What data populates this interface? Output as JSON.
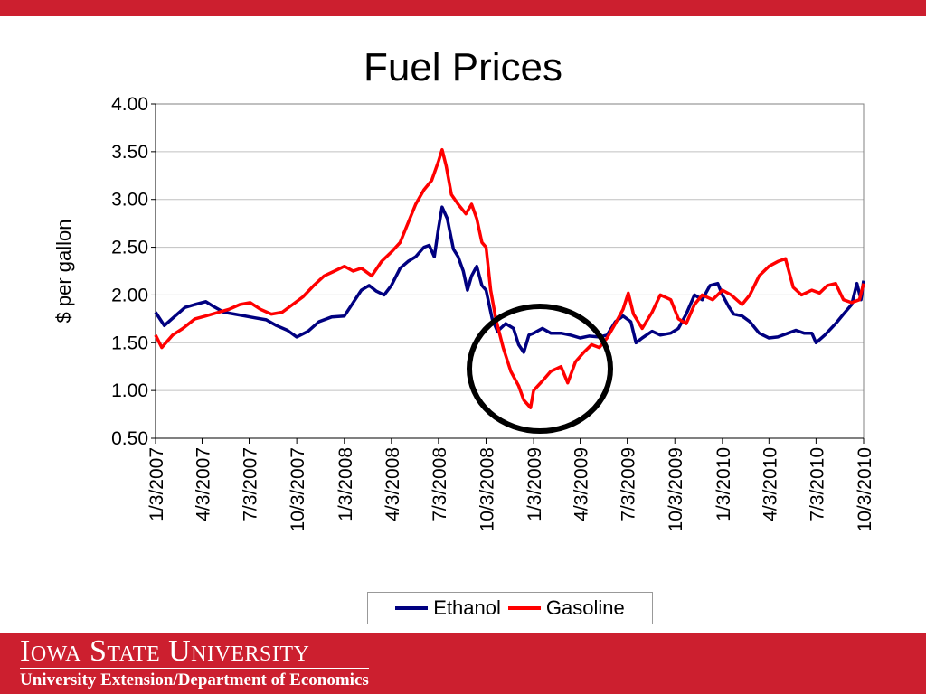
{
  "slide": {
    "footer_university": "Iowa State University",
    "footer_department": "University Extension/Department of Economics"
  },
  "colors": {
    "brand_red": "#cc1f2f",
    "ethanol": "#000080",
    "gasoline": "#ff0000"
  },
  "chart_data": {
    "type": "line",
    "title": "Fuel Prices",
    "ylabel": "$ per gallon",
    "xlabel": "",
    "ylim": [
      0.5,
      4.0
    ],
    "yticks": [
      "0.50",
      "1.00",
      "1.50",
      "2.00",
      "2.50",
      "3.00",
      "3.50",
      "4.00"
    ],
    "xlim": [
      "2007-01-03",
      "2010-10-03"
    ],
    "xticks": [
      "1/3/2007",
      "4/3/2007",
      "7/3/2007",
      "10/3/2007",
      "1/3/2008",
      "4/3/2008",
      "7/3/2008",
      "10/3/2008",
      "1/3/2009",
      "4/3/2009",
      "7/3/2009",
      "10/3/2009",
      "1/3/2010",
      "4/3/2010",
      "7/3/2010",
      "10/3/2010"
    ],
    "grid": true,
    "legend_position": "bottom",
    "annotation": "circle around late 2008 – early 2009 region",
    "series": [
      {
        "name": "Ethanol",
        "color": "#000080",
        "points": [
          [
            "2007-01-03",
            1.82
          ],
          [
            "2007-01-20",
            1.68
          ],
          [
            "2007-02-10",
            1.78
          ],
          [
            "2007-03-01",
            1.87
          ],
          [
            "2007-03-20",
            1.9
          ],
          [
            "2007-04-10",
            1.93
          ],
          [
            "2007-04-25",
            1.88
          ],
          [
            "2007-05-15",
            1.82
          ],
          [
            "2007-06-05",
            1.8
          ],
          [
            "2007-06-25",
            1.78
          ],
          [
            "2007-07-15",
            1.76
          ],
          [
            "2007-08-05",
            1.74
          ],
          [
            "2007-08-25",
            1.68
          ],
          [
            "2007-09-15",
            1.63
          ],
          [
            "2007-10-03",
            1.56
          ],
          [
            "2007-10-25",
            1.62
          ],
          [
            "2007-11-15",
            1.72
          ],
          [
            "2007-12-10",
            1.77
          ],
          [
            "2008-01-03",
            1.78
          ],
          [
            "2008-01-20",
            1.92
          ],
          [
            "2008-02-05",
            2.05
          ],
          [
            "2008-02-20",
            2.1
          ],
          [
            "2008-03-05",
            2.04
          ],
          [
            "2008-03-20",
            2.0
          ],
          [
            "2008-04-03",
            2.1
          ],
          [
            "2008-04-20",
            2.28
          ],
          [
            "2008-05-05",
            2.35
          ],
          [
            "2008-05-20",
            2.4
          ],
          [
            "2008-06-05",
            2.5
          ],
          [
            "2008-06-15",
            2.52
          ],
          [
            "2008-06-25",
            2.4
          ],
          [
            "2008-07-03",
            2.7
          ],
          [
            "2008-07-10",
            2.92
          ],
          [
            "2008-07-20",
            2.8
          ],
          [
            "2008-08-01",
            2.48
          ],
          [
            "2008-08-10",
            2.4
          ],
          [
            "2008-08-20",
            2.25
          ],
          [
            "2008-08-28",
            2.05
          ],
          [
            "2008-09-05",
            2.2
          ],
          [
            "2008-09-15",
            2.3
          ],
          [
            "2008-09-25",
            2.1
          ],
          [
            "2008-10-03",
            2.05
          ],
          [
            "2008-10-15",
            1.75
          ],
          [
            "2008-10-25",
            1.62
          ],
          [
            "2008-11-10",
            1.7
          ],
          [
            "2008-11-25",
            1.65
          ],
          [
            "2008-12-05",
            1.48
          ],
          [
            "2008-12-15",
            1.4
          ],
          [
            "2008-12-25",
            1.58
          ],
          [
            "2009-01-03",
            1.6
          ],
          [
            "2009-01-20",
            1.65
          ],
          [
            "2009-02-05",
            1.6
          ],
          [
            "2009-02-25",
            1.6
          ],
          [
            "2009-03-15",
            1.58
          ],
          [
            "2009-04-03",
            1.55
          ],
          [
            "2009-04-20",
            1.57
          ],
          [
            "2009-05-10",
            1.56
          ],
          [
            "2009-05-25",
            1.58
          ],
          [
            "2009-06-10",
            1.72
          ],
          [
            "2009-06-25",
            1.78
          ],
          [
            "2009-07-10",
            1.72
          ],
          [
            "2009-07-20",
            1.5
          ],
          [
            "2009-08-01",
            1.55
          ],
          [
            "2009-08-20",
            1.62
          ],
          [
            "2009-09-05",
            1.58
          ],
          [
            "2009-09-25",
            1.6
          ],
          [
            "2009-10-10",
            1.65
          ],
          [
            "2009-10-25",
            1.8
          ],
          [
            "2009-11-10",
            2.0
          ],
          [
            "2009-11-25",
            1.95
          ],
          [
            "2009-12-10",
            2.1
          ],
          [
            "2009-12-25",
            2.12
          ],
          [
            "2010-01-03",
            2.0
          ],
          [
            "2010-01-15",
            1.88
          ],
          [
            "2010-01-25",
            1.8
          ],
          [
            "2010-02-10",
            1.78
          ],
          [
            "2010-02-25",
            1.72
          ],
          [
            "2010-03-15",
            1.6
          ],
          [
            "2010-04-03",
            1.55
          ],
          [
            "2010-04-20",
            1.56
          ],
          [
            "2010-05-10",
            1.6
          ],
          [
            "2010-05-25",
            1.63
          ],
          [
            "2010-06-10",
            1.6
          ],
          [
            "2010-06-25",
            1.6
          ],
          [
            "2010-07-03",
            1.5
          ],
          [
            "2010-07-20",
            1.58
          ],
          [
            "2010-08-10",
            1.7
          ],
          [
            "2010-08-25",
            1.8
          ],
          [
            "2010-09-10",
            1.9
          ],
          [
            "2010-09-20",
            2.12
          ],
          [
            "2010-09-28",
            1.95
          ],
          [
            "2010-10-03",
            2.15
          ]
        ]
      },
      {
        "name": "Gasoline",
        "color": "#ff0000",
        "points": [
          [
            "2007-01-03",
            1.58
          ],
          [
            "2007-01-15",
            1.45
          ],
          [
            "2007-02-05",
            1.58
          ],
          [
            "2007-02-25",
            1.65
          ],
          [
            "2007-03-20",
            1.75
          ],
          [
            "2007-04-10",
            1.78
          ],
          [
            "2007-05-05",
            1.82
          ],
          [
            "2007-05-25",
            1.85
          ],
          [
            "2007-06-15",
            1.9
          ],
          [
            "2007-07-05",
            1.92
          ],
          [
            "2007-07-25",
            1.85
          ],
          [
            "2007-08-15",
            1.8
          ],
          [
            "2007-09-05",
            1.82
          ],
          [
            "2007-09-25",
            1.9
          ],
          [
            "2007-10-15",
            1.98
          ],
          [
            "2007-11-05",
            2.1
          ],
          [
            "2007-11-25",
            2.2
          ],
          [
            "2007-12-15",
            2.25
          ],
          [
            "2008-01-03",
            2.3
          ],
          [
            "2008-01-20",
            2.25
          ],
          [
            "2008-02-05",
            2.28
          ],
          [
            "2008-02-25",
            2.2
          ],
          [
            "2008-03-15",
            2.35
          ],
          [
            "2008-04-03",
            2.45
          ],
          [
            "2008-04-20",
            2.55
          ],
          [
            "2008-05-05",
            2.75
          ],
          [
            "2008-05-20",
            2.95
          ],
          [
            "2008-06-05",
            3.1
          ],
          [
            "2008-06-20",
            3.2
          ],
          [
            "2008-07-03",
            3.4
          ],
          [
            "2008-07-10",
            3.52
          ],
          [
            "2008-07-18",
            3.35
          ],
          [
            "2008-07-28",
            3.05
          ],
          [
            "2008-08-10",
            2.95
          ],
          [
            "2008-08-25",
            2.85
          ],
          [
            "2008-09-05",
            2.95
          ],
          [
            "2008-09-15",
            2.8
          ],
          [
            "2008-09-25",
            2.55
          ],
          [
            "2008-10-03",
            2.5
          ],
          [
            "2008-10-12",
            2.05
          ],
          [
            "2008-10-22",
            1.75
          ],
          [
            "2008-11-05",
            1.45
          ],
          [
            "2008-11-20",
            1.2
          ],
          [
            "2008-12-05",
            1.05
          ],
          [
            "2008-12-15",
            0.9
          ],
          [
            "2008-12-28",
            0.82
          ],
          [
            "2009-01-03",
            1.0
          ],
          [
            "2009-01-20",
            1.1
          ],
          [
            "2009-02-05",
            1.2
          ],
          [
            "2009-02-25",
            1.25
          ],
          [
            "2009-03-10",
            1.08
          ],
          [
            "2009-03-25",
            1.3
          ],
          [
            "2009-04-10",
            1.4
          ],
          [
            "2009-04-25",
            1.48
          ],
          [
            "2009-05-10",
            1.45
          ],
          [
            "2009-05-25",
            1.55
          ],
          [
            "2009-06-10",
            1.7
          ],
          [
            "2009-06-25",
            1.85
          ],
          [
            "2009-07-05",
            2.02
          ],
          [
            "2009-07-15",
            1.8
          ],
          [
            "2009-08-01",
            1.65
          ],
          [
            "2009-08-20",
            1.82
          ],
          [
            "2009-09-05",
            2.0
          ],
          [
            "2009-09-25",
            1.95
          ],
          [
            "2009-10-10",
            1.75
          ],
          [
            "2009-10-25",
            1.7
          ],
          [
            "2009-11-10",
            1.9
          ],
          [
            "2009-11-25",
            2.0
          ],
          [
            "2009-12-15",
            1.95
          ],
          [
            "2010-01-03",
            2.05
          ],
          [
            "2010-01-20",
            2.0
          ],
          [
            "2010-02-10",
            1.9
          ],
          [
            "2010-02-25",
            2.0
          ],
          [
            "2010-03-15",
            2.2
          ],
          [
            "2010-04-03",
            2.3
          ],
          [
            "2010-04-20",
            2.35
          ],
          [
            "2010-05-05",
            2.38
          ],
          [
            "2010-05-20",
            2.08
          ],
          [
            "2010-06-05",
            2.0
          ],
          [
            "2010-06-25",
            2.05
          ],
          [
            "2010-07-10",
            2.02
          ],
          [
            "2010-07-25",
            2.1
          ],
          [
            "2010-08-10",
            2.12
          ],
          [
            "2010-08-25",
            1.95
          ],
          [
            "2010-09-10",
            1.92
          ],
          [
            "2010-09-25",
            1.95
          ],
          [
            "2010-10-03",
            2.12
          ]
        ]
      }
    ]
  }
}
